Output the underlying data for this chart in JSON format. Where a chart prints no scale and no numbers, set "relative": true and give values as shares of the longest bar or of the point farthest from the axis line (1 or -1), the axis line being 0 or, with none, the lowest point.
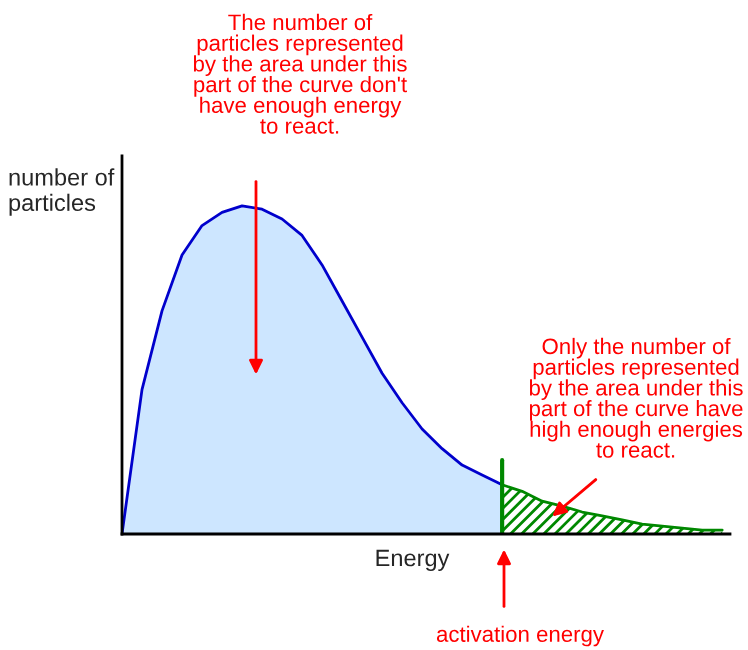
{
  "chart_data": {
    "type": "area",
    "relative": true,
    "xlabel": "Energy",
    "ylabel": "number of\nparticles",
    "categories": [
      null,
      null,
      null,
      null,
      null,
      null,
      null,
      null,
      null,
      null,
      null,
      null,
      null,
      null,
      null,
      null,
      null,
      null,
      null,
      null,
      null,
      null,
      null,
      null,
      null,
      null,
      null,
      null,
      null,
      null,
      null
    ],
    "series": [
      {
        "color": "#1a8cff",
        "values": [
          0,
          0.44,
          0.68,
          0.85,
          0.94,
          0.98,
          1.0,
          0.99,
          0.96,
          0.91,
          0.82,
          0.71,
          0.6,
          0.49,
          0.4,
          0.32,
          0.26,
          0.21,
          0.18,
          0.15,
          null,
          null,
          null,
          null,
          null,
          null,
          null,
          null,
          null,
          null,
          null
        ]
      },
      {
        "color": "#008800",
        "values": [
          null,
          null,
          null,
          null,
          null,
          null,
          null,
          null,
          null,
          null,
          null,
          null,
          null,
          null,
          null,
          null,
          null,
          null,
          null,
          0.15,
          0.13,
          0.1,
          0.085,
          0.067,
          0.055,
          0.043,
          0.03,
          0.024,
          0.018,
          0.012,
          0.012
        ]
      }
    ],
    "annotations": [
      "The number of\nparticles represented\nby the area under this\npart of the curve don't\nhave enough energy\nto react.",
      "Only the number of\nparticles represented\nby the area under this\npart of the curve have\nhigh enough energies\nto react.",
      "activation energy"
    ]
  }
}
